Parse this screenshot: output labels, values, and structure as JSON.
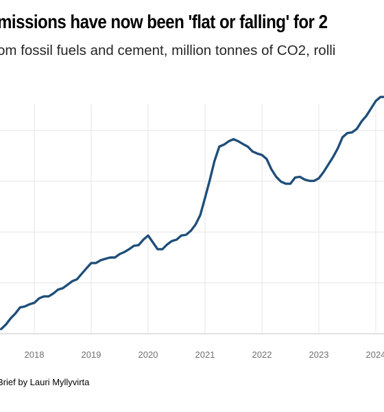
{
  "title": "missions have now been 'flat or falling' for 2",
  "subtitle": "om fossil fuels and cement, million tonnes of CO2, rolli",
  "source": "Brief by Lauri Myllyvirta",
  "colors": {
    "line": "#1f4e79",
    "grid": "#e6e6e6",
    "tick_text": "#707070"
  },
  "chart_data": {
    "type": "line",
    "title": "missions have now been 'flat or falling' for 2",
    "subtitle": "om fossil fuels and cement, million tonnes of CO2, rolli",
    "xlabel": "",
    "ylabel": "",
    "x_ticks": [
      "2018",
      "2019",
      "2020",
      "2021",
      "2022",
      "2023",
      "2024"
    ],
    "grid": true,
    "y_ticks_shown": false,
    "series": [
      {
        "x": [
          "2017-06",
          "2017-07",
          "2017-08",
          "2017-09",
          "2017-10",
          "2017-11",
          "2017-12",
          "2018-01",
          "2018-02",
          "2018-03",
          "2018-04",
          "2018-05",
          "2018-06",
          "2018-07",
          "2018-08",
          "2018-09",
          "2018-10",
          "2018-11",
          "2018-12",
          "2019-01",
          "2019-02",
          "2019-03",
          "2019-04",
          "2019-05",
          "2019-06",
          "2019-07",
          "2019-08",
          "2019-09",
          "2019-10",
          "2019-11",
          "2019-12",
          "2020-01",
          "2020-02",
          "2020-03",
          "2020-04",
          "2020-05",
          "2020-06",
          "2020-07",
          "2020-08",
          "2020-09",
          "2020-10",
          "2020-11",
          "2020-12",
          "2021-01",
          "2021-02",
          "2021-03",
          "2021-04",
          "2021-05",
          "2021-06",
          "2021-07",
          "2021-08",
          "2021-09",
          "2021-10",
          "2021-11",
          "2021-12",
          "2022-01",
          "2022-02",
          "2022-03",
          "2022-04",
          "2022-05",
          "2022-06",
          "2022-07",
          "2022-08",
          "2022-09",
          "2022-10",
          "2022-11",
          "2022-12",
          "2023-01",
          "2023-02",
          "2023-03",
          "2023-04",
          "2023-05",
          "2023-06",
          "2023-07",
          "2023-08",
          "2023-09",
          "2023-10",
          "2023-11",
          "2023-12",
          "2024-01",
          "2024-02",
          "2024-03"
        ],
        "values": [
          4.6,
          8.9,
          15.0,
          19.8,
          25.9,
          26.8,
          29.0,
          30.4,
          34.7,
          36.7,
          36.7,
          39.5,
          43.4,
          44.8,
          48.2,
          51.6,
          53.6,
          59.0,
          64.4,
          69.5,
          69.5,
          72.3,
          73.7,
          75.0,
          75.0,
          78.4,
          80.4,
          83.2,
          86.5,
          87.2,
          92.6,
          96.6,
          89.9,
          83.2,
          83.2,
          87.8,
          91.2,
          92.6,
          96.6,
          97.3,
          101.3,
          107.4,
          116.8,
          133.7,
          151.1,
          170.0,
          184.1,
          186.1,
          189.4,
          191.4,
          189.4,
          186.7,
          184.1,
          179.3,
          177.3,
          175.9,
          171.9,
          161.8,
          154.4,
          149.7,
          147.6,
          147.6,
          153.7,
          154.4,
          151.7,
          150.4,
          150.4,
          153.0,
          159.1,
          166.5,
          173.9,
          182.6,
          193.4,
          197.4,
          198.1,
          201.5,
          208.9,
          214.3,
          221.6,
          229.0,
          233.0,
          233.0
        ]
      }
    ]
  }
}
